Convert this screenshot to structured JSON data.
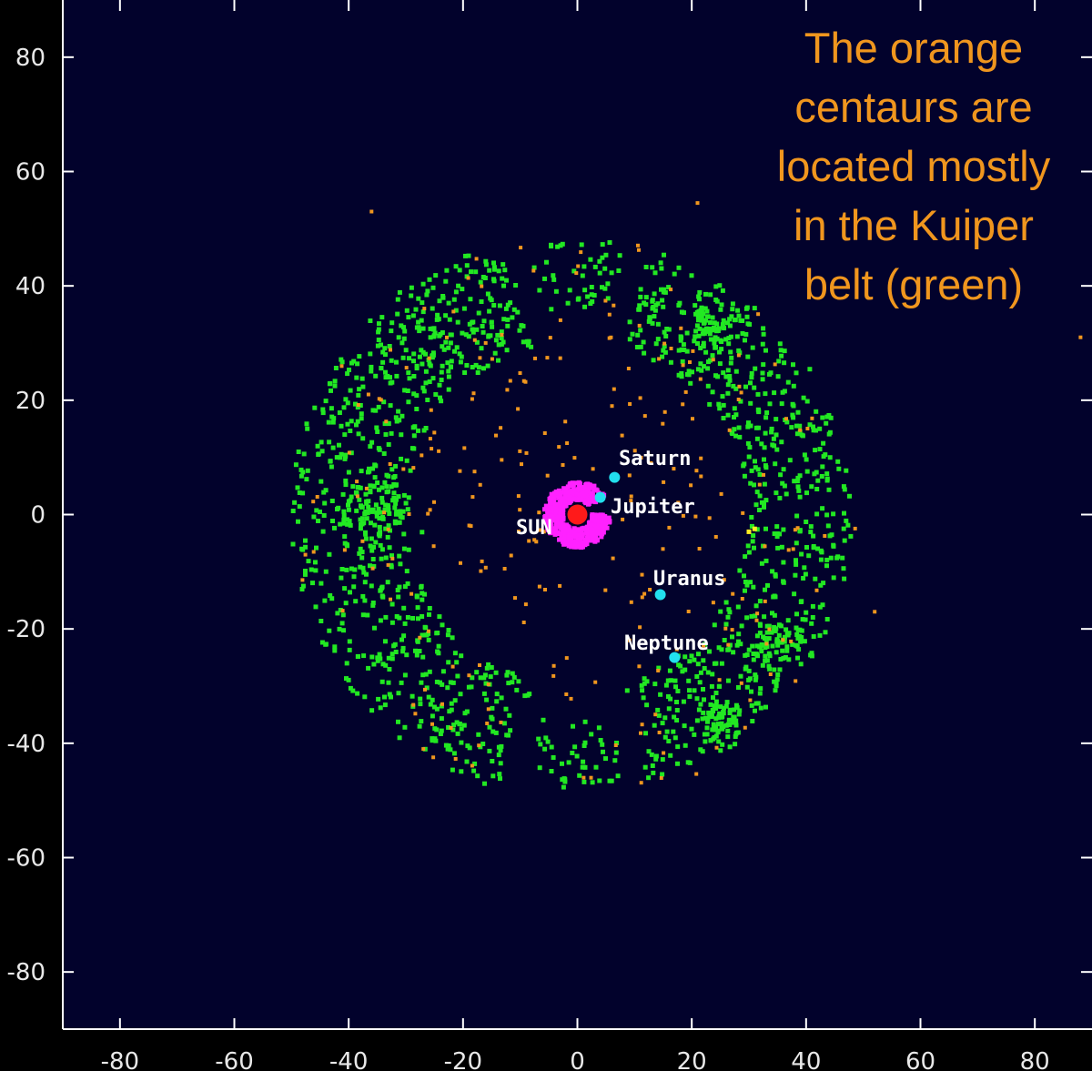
{
  "chart_data": {
    "type": "scatter",
    "title": "",
    "xlabel": "",
    "ylabel": "",
    "xlim": [
      -90,
      90
    ],
    "ylim": [
      -90,
      90
    ],
    "x_ticks": [
      -80,
      -60,
      -40,
      -20,
      0,
      20,
      40,
      60,
      80
    ],
    "y_ticks": [
      80,
      60,
      40,
      20,
      0,
      -20,
      -40,
      -60,
      -80
    ],
    "grid": false,
    "background_color": "#02022c",
    "axis_color": "#ffffff",
    "annotation": "The orange centaurs are located mostly in the Kuiper belt (green)",
    "colors": {
      "kuiper_belt": "#22e822",
      "centaurs": "#f0961e",
      "asteroids": "#ff22ff",
      "planets": "#22e0ee",
      "sun": "#ff1a1a",
      "trojan": "#ffee22"
    },
    "sun": {
      "label": "SUN",
      "x": 0,
      "y": 0
    },
    "planets": [
      {
        "name": "Saturn",
        "x": 6.5,
        "y": 6.5
      },
      {
        "name": "Jupiter",
        "x": 4,
        "y": 3
      },
      {
        "name": "Uranus",
        "x": 14.5,
        "y": -14
      },
      {
        "name": "Neptune",
        "x": 17,
        "y": -25
      }
    ],
    "kuiper_belt": {
      "description_points": "green objects scattered in an annulus between radius ~30 and ~50 AU with a gap near the top and bottom",
      "arcs": [
        {
          "r_min": 30,
          "r_max": 50,
          "angle_start": 105,
          "angle_end": 255,
          "count": 700
        },
        {
          "r_min": 30,
          "r_max": 48,
          "angle_start": -75,
          "angle_end": 75,
          "count": 620
        },
        {
          "r_min": 36,
          "r_max": 48,
          "angle_start": 80,
          "angle_end": 100,
          "count": 45
        },
        {
          "r_min": 36,
          "r_max": 48,
          "angle_start": 260,
          "angle_end": 280,
          "count": 45
        }
      ],
      "clusters": [
        {
          "x": -35,
          "y": 0,
          "spread": 6,
          "count": 90
        },
        {
          "x": 24,
          "y": 33,
          "spread": 5,
          "count": 70
        },
        {
          "x": 25,
          "y": -36,
          "spread": 4,
          "count": 70
        },
        {
          "x": 35,
          "y": -22,
          "spread": 5,
          "count": 60
        },
        {
          "x": -26,
          "y": 30,
          "spread": 5,
          "count": 40
        }
      ]
    },
    "centaurs": {
      "r_min": 6,
      "r_max": 50,
      "count": 260
    },
    "asteroid_belt": {
      "r_min": 2.5,
      "r_max": 5.8,
      "count": 600
    }
  }
}
